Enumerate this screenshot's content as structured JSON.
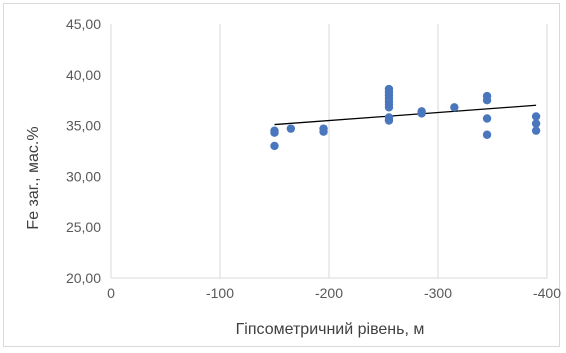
{
  "chart_data": {
    "type": "scatter",
    "title": "",
    "xlabel": "Гіпсометричний рівень, м",
    "ylabel": "Fe  заг., мас.%",
    "xlim": [
      0,
      -400
    ],
    "ylim": [
      20,
      45
    ],
    "x_ticks": [
      "0",
      "-100",
      "-200",
      "-300",
      "-400"
    ],
    "y_ticks": [
      "20,00",
      "25,00",
      "30,00",
      "35,00",
      "40,00",
      "45,00"
    ],
    "grid": "vertical",
    "legend": "none",
    "marker_color": "#4a76be",
    "trendline": {
      "type": "linear",
      "color": "#000000",
      "x_range": [
        -150,
        -390
      ],
      "y_range": [
        35.1,
        37.0
      ]
    },
    "series": [
      {
        "points": [
          {
            "x": -150,
            "y": 33.0
          },
          {
            "x": -150,
            "y": 34.3
          },
          {
            "x": -150,
            "y": 34.5
          },
          {
            "x": -165,
            "y": 34.7
          },
          {
            "x": -195,
            "y": 34.4
          },
          {
            "x": -195,
            "y": 34.7
          },
          {
            "x": -255,
            "y": 35.5
          },
          {
            "x": -255,
            "y": 35.8
          },
          {
            "x": -255,
            "y": 36.8
          },
          {
            "x": -255,
            "y": 37.1
          },
          {
            "x": -255,
            "y": 37.4
          },
          {
            "x": -255,
            "y": 37.7
          },
          {
            "x": -255,
            "y": 38.0
          },
          {
            "x": -255,
            "y": 38.3
          },
          {
            "x": -255,
            "y": 38.6
          },
          {
            "x": -285,
            "y": 36.2
          },
          {
            "x": -285,
            "y": 36.4
          },
          {
            "x": -315,
            "y": 36.8
          },
          {
            "x": -345,
            "y": 34.1
          },
          {
            "x": -345,
            "y": 35.7
          },
          {
            "x": -345,
            "y": 37.5
          },
          {
            "x": -345,
            "y": 37.9
          },
          {
            "x": -390,
            "y": 34.5
          },
          {
            "x": -390,
            "y": 35.2
          },
          {
            "x": -390,
            "y": 35.9
          }
        ]
      }
    ]
  }
}
